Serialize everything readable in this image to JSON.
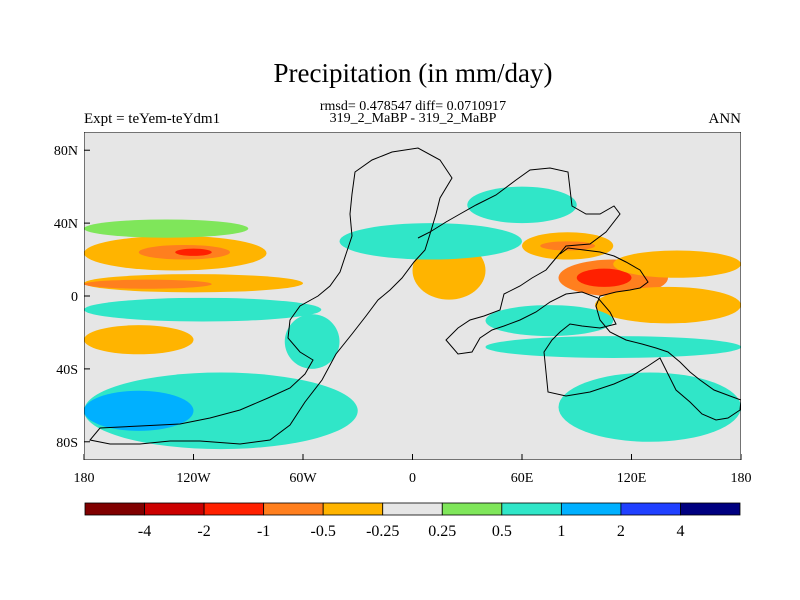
{
  "chart_data": {
    "type": "heatmap",
    "title": "Precipitation (in mm/day)",
    "subtitle_stats": "rmsd= 0.478547 diff= 0.0710917",
    "subtitle_cases": "319_2_MaBP - 319_2_MaBP",
    "left_label": "Expt = teYem-teYdm1",
    "right_label": "ANN",
    "projection": "cylindrical equidistant (latitude-longitude map)",
    "x_range": [
      -180,
      180
    ],
    "y_range": [
      -90,
      90
    ],
    "x_ticks": [
      {
        "value": -180,
        "label": "180"
      },
      {
        "value": -120,
        "label": "120W"
      },
      {
        "value": -60,
        "label": "60W"
      },
      {
        "value": 0,
        "label": "0"
      },
      {
        "value": 60,
        "label": "60E"
      },
      {
        "value": 120,
        "label": "120E"
      },
      {
        "value": 180,
        "label": "180"
      }
    ],
    "y_ticks": [
      {
        "value": 80,
        "label": "80N"
      },
      {
        "value": 40,
        "label": "40N"
      },
      {
        "value": 0,
        "label": "0"
      },
      {
        "value": -40,
        "label": "40S"
      },
      {
        "value": -80,
        "label": "80S"
      }
    ],
    "contour_levels": [
      -4,
      -2,
      -1,
      -0.5,
      -0.25,
      0.25,
      0.5,
      1,
      2,
      4
    ],
    "colorbar_labels": [
      "-4",
      "-2",
      "-1",
      "-0.5",
      "-0.25",
      "0.25",
      "0.5",
      "1",
      "2",
      "4"
    ],
    "colorbar_colors": [
      "#800000",
      "#cc0000",
      "#ff2000",
      "#ff7f1e",
      "#ffb400",
      "#e6e6e6",
      "#7fe65a",
      "#30e6c8",
      "#00b0ff",
      "#2040ff",
      "#000080"
    ],
    "background_color": "#e6e6e6",
    "regions": [
      {
        "name": "north-pacific-dry-band",
        "level": -0.5,
        "lon": [
          -180,
          -80
        ],
        "lat": [
          14,
          33
        ]
      },
      {
        "name": "north-pacific-dry-core",
        "level": -1,
        "lon": [
          -150,
          -100
        ],
        "lat": [
          20,
          28
        ]
      },
      {
        "name": "north-pacific-dry-peak",
        "level": -2,
        "lon": [
          -130,
          -110
        ],
        "lat": [
          22,
          26
        ]
      },
      {
        "name": "north-pacific-wet-band",
        "level": 0.25,
        "lon": [
          -180,
          -90
        ],
        "lat": [
          32,
          42
        ]
      },
      {
        "name": "equatorial-pacific-dry",
        "level": -0.5,
        "lon": [
          -180,
          -60
        ],
        "lat": [
          2,
          12
        ]
      },
      {
        "name": "equatorial-pacific-dry-core",
        "level": -1,
        "lon": [
          -180,
          -110
        ],
        "lat": [
          4,
          9
        ]
      },
      {
        "name": "equatorial-pacific-wet",
        "level": 0.5,
        "lon": [
          -180,
          -50
        ],
        "lat": [
          -14,
          -1
        ]
      },
      {
        "name": "south-pacific-dry",
        "level": -0.5,
        "lon": [
          -180,
          -120
        ],
        "lat": [
          -32,
          -16
        ]
      },
      {
        "name": "southern-ocean-wet",
        "level": 0.5,
        "lon": [
          -180,
          -30
        ],
        "lat": [
          -84,
          -42
        ]
      },
      {
        "name": "southern-ocean-wet-core",
        "level": 1,
        "lon": [
          -180,
          -120
        ],
        "lat": [
          -74,
          -52
        ]
      },
      {
        "name": "africa-west-dry",
        "level": -0.5,
        "lon": [
          0,
          40
        ],
        "lat": [
          -2,
          30
        ]
      },
      {
        "name": "sahara-wet",
        "level": 0.5,
        "lon": [
          -40,
          60
        ],
        "lat": [
          20,
          40
        ]
      },
      {
        "name": "arabia-wet",
        "level": 0.5,
        "lon": [
          30,
          90
        ],
        "lat": [
          40,
          60
        ]
      },
      {
        "name": "asia-dry-band",
        "level": -0.5,
        "lon": [
          60,
          110
        ],
        "lat": [
          20,
          35
        ]
      },
      {
        "name": "asia-dry-core",
        "level": -1,
        "lon": [
          70,
          100
        ],
        "lat": [
          25,
          30
        ]
      },
      {
        "name": "indian-monsoon-dry",
        "level": -1,
        "lon": [
          80,
          140
        ],
        "lat": [
          0,
          20
        ]
      },
      {
        "name": "indian-monsoon-dry-core",
        "level": -2,
        "lon": [
          90,
          120
        ],
        "lat": [
          5,
          15
        ]
      },
      {
        "name": "maritime-dry",
        "level": -0.5,
        "lon": [
          100,
          180
        ],
        "lat": [
          -15,
          5
        ]
      },
      {
        "name": "west-pacific-dry",
        "level": -0.5,
        "lon": [
          110,
          180
        ],
        "lat": [
          10,
          25
        ]
      },
      {
        "name": "indian-ocean-wet",
        "level": 0.5,
        "lon": [
          40,
          110
        ],
        "lat": [
          -22,
          -5
        ]
      },
      {
        "name": "south-indian-wet",
        "level": 0.5,
        "lon": [
          40,
          180
        ],
        "lat": [
          -34,
          -22
        ]
      },
      {
        "name": "southern-indian-wet",
        "level": 0.5,
        "lon": [
          80,
          180
        ],
        "lat": [
          -80,
          -42
        ]
      },
      {
        "name": "south-america-wet",
        "level": 0.5,
        "lon": [
          -70,
          -40
        ],
        "lat": [
          -40,
          -10
        ]
      }
    ]
  }
}
